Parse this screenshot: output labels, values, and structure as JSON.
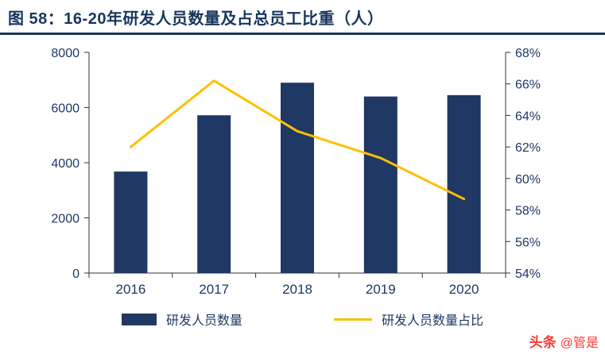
{
  "header": {
    "title": "图 58：16-20年研发人员数量及占总员工比重（人）"
  },
  "chart_data": {
    "type": "bar",
    "subtype": "bar+line combo",
    "title": "16-20年研发人员数量及占总员工比重（人）",
    "categories": [
      "2016",
      "2017",
      "2018",
      "2019",
      "2020"
    ],
    "series": [
      {
        "name": "研发人员数量",
        "type": "bar",
        "axis": "left",
        "color": "#1F3864",
        "values": [
          3680,
          5720,
          6900,
          6400,
          6450
        ]
      },
      {
        "name": "研发人员数量占比",
        "type": "line",
        "axis": "right",
        "color": "#FFC000",
        "values": [
          62.0,
          66.2,
          63.0,
          61.3,
          58.7
        ]
      }
    ],
    "left_axis": {
      "min": 0,
      "max": 8000,
      "step": 2000,
      "tick_labels": [
        "0",
        "2000",
        "4000",
        "6000",
        "8000"
      ]
    },
    "right_axis": {
      "min": 54,
      "max": 68,
      "step": 2,
      "unit": "%",
      "tick_labels": [
        "54%",
        "56%",
        "58%",
        "60%",
        "62%",
        "64%",
        "66%",
        "68%"
      ]
    },
    "legend": [
      {
        "label": "研发人员数量",
        "type": "bar",
        "color": "#1F3864"
      },
      {
        "label": "研发人员数量占比",
        "type": "line",
        "color": "#FFC000"
      }
    ],
    "grid": false,
    "legend_position": "bottom"
  },
  "watermark": {
    "brand": "头条",
    "handle": "@管是"
  },
  "colors": {
    "accent": "#17365D",
    "bar": "#1F3864",
    "line": "#FFC000",
    "axis_text": "#1F3864",
    "axis_line": "#333333",
    "watermark_red": "#FD3A30"
  }
}
